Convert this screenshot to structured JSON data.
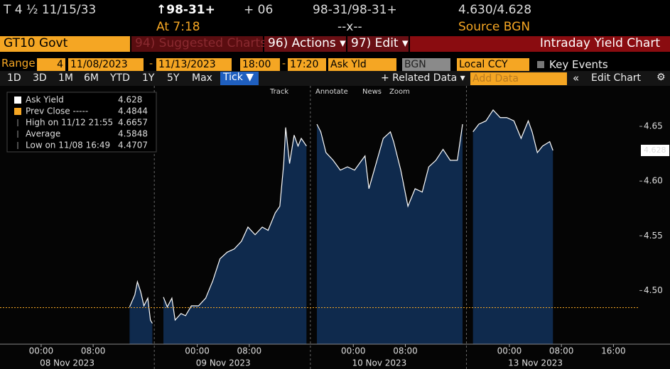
{
  "header": {
    "security": "T 4 ½ 11/15/33",
    "price": "↑98-31+",
    "change": "+ 06",
    "bid_ask": "98-31/98-31+",
    "yields": "4.630/4.628",
    "time": "At 7:18",
    "size": "--x--",
    "source": "Source BGN"
  },
  "menu": {
    "ticker": "GT10 Govt",
    "suggested": "94) Suggested Charts",
    "actions": "96) Actions ▾",
    "edit": "97) Edit ▾",
    "title": "Intraday Yield Chart"
  },
  "controls": {
    "range": "Range",
    "count": "4",
    "start_date": "11/08/2023",
    "dash1": "-",
    "end_date": "11/13/2023",
    "start_time": "18:00",
    "dash2": "-",
    "end_time": "17:20",
    "field": "Ask Yld",
    "source": "BGN",
    "currency": "Local CCY",
    "events": "Key Events"
  },
  "toolbar": {
    "periods": [
      "1D",
      "3D",
      "1M",
      "6M",
      "YTD",
      "1Y",
      "5Y",
      "Max"
    ],
    "tick": "Tick ▼",
    "related": "+ Related Data ▾",
    "add_data": "Add Data",
    "collapse": "«",
    "edit_chart": "Edit Chart",
    "settings": "⚙"
  },
  "chart_tools": [
    "Track",
    "Annotate",
    "News",
    "Zoom"
  ],
  "chart_data": {
    "type": "area",
    "legend": [
      {
        "label": "Ask Yield",
        "value": 4.628,
        "color": "#ffffff"
      },
      {
        "label": "Prev Close -----",
        "value": 4.4844,
        "color": "#f5a623"
      },
      {
        "label": "High on 11/12 21:55",
        "value": 4.6657
      },
      {
        "label": "Average",
        "value": 4.5848
      },
      {
        "label": "Low on 11/08 16:49",
        "value": 4.4707
      }
    ],
    "series": [
      {
        "name": "Ask Yield",
        "color": "#ffffff",
        "fill": "#0f2a4d",
        "x": [
          19.6,
          20.4,
          20.8,
          21.3,
          21.8,
          22.4,
          22.8,
          23.1,
          23.4,
          24.8,
          25.4,
          26.1,
          26.6,
          27.5,
          28.2,
          29.1,
          30.2,
          31.3,
          32.4,
          33.5,
          34.6,
          35.7,
          36.8,
          37.8,
          38.9,
          40.0,
          40.9,
          42.0,
          42.7,
          43.3,
          43.6,
          44.2,
          44.9,
          45.5,
          46.0,
          46.8,
          47.4,
          48.4,
          49.0,
          49.8,
          50.9,
          52.0,
          53.1,
          54.2,
          55.3,
          55.8,
          56.4,
          57.5,
          58.6,
          59.7,
          60.2,
          61.3,
          62.4,
          63.5,
          64.6,
          65.6,
          66.7,
          67.8,
          68.9,
          70.0,
          70.8,
          71.4,
          72.4,
          73.3,
          74.4,
          75.5,
          76.6,
          77.6,
          78.7,
          79.8,
          80.9,
          81.5,
          82.3,
          83.1,
          84.2,
          84.7
        ],
        "values": [
          4.485,
          4.496,
          4.508,
          4.499,
          4.486,
          4.493,
          4.473,
          4.47,
          null,
          4.494,
          4.485,
          4.493,
          4.473,
          4.479,
          4.477,
          4.486,
          4.486,
          4.493,
          4.509,
          4.529,
          4.535,
          4.538,
          4.545,
          4.558,
          4.551,
          4.558,
          4.555,
          4.571,
          4.577,
          4.616,
          4.649,
          4.616,
          4.642,
          4.632,
          4.639,
          4.632,
          null,
          4.652,
          4.645,
          4.626,
          4.619,
          4.61,
          4.613,
          4.61,
          4.619,
          4.623,
          4.593,
          4.616,
          4.639,
          4.645,
          4.636,
          4.61,
          4.577,
          4.593,
          4.59,
          4.613,
          4.619,
          4.629,
          4.619,
          4.619,
          4.652,
          null,
          4.645,
          4.652,
          4.655,
          4.665,
          4.658,
          4.658,
          4.655,
          4.639,
          4.655,
          4.645,
          4.626,
          4.632,
          4.636,
          4.628
        ]
      }
    ],
    "reference_line": {
      "name": "Prev Close",
      "value": 4.4844,
      "color": "#f5a623"
    },
    "xlim": [
      0,
      98
    ],
    "ylim": [
      4.451,
      4.687
    ],
    "xticks": [
      {
        "value": 6,
        "label": "00:00"
      },
      {
        "value": 14,
        "label": "08:00"
      },
      {
        "value": 30,
        "label": "00:00"
      },
      {
        "value": 38,
        "label": "08:00"
      },
      {
        "value": 54,
        "label": "00:00"
      },
      {
        "value": 62,
        "label": "08:00"
      },
      {
        "value": 78,
        "label": "00:00"
      },
      {
        "value": 86,
        "label": "08:00"
      },
      {
        "value": 94,
        "label": "16:00"
      }
    ],
    "x_day_labels": [
      {
        "value": 10,
        "label": "08 Nov 2023"
      },
      {
        "value": 34,
        "label": "09 Nov 2023"
      },
      {
        "value": 58,
        "label": "10 Nov 2023"
      },
      {
        "value": 82,
        "label": "13 Nov 2023"
      }
    ],
    "x_breaks": [
      23.4,
      47.4,
      71.4
    ],
    "yticks": [
      {
        "value": 4.5,
        "label": "4.50"
      },
      4.55,
      {
        "value": 4.6,
        "label": "4.60"
      },
      4.65
    ]
  }
}
